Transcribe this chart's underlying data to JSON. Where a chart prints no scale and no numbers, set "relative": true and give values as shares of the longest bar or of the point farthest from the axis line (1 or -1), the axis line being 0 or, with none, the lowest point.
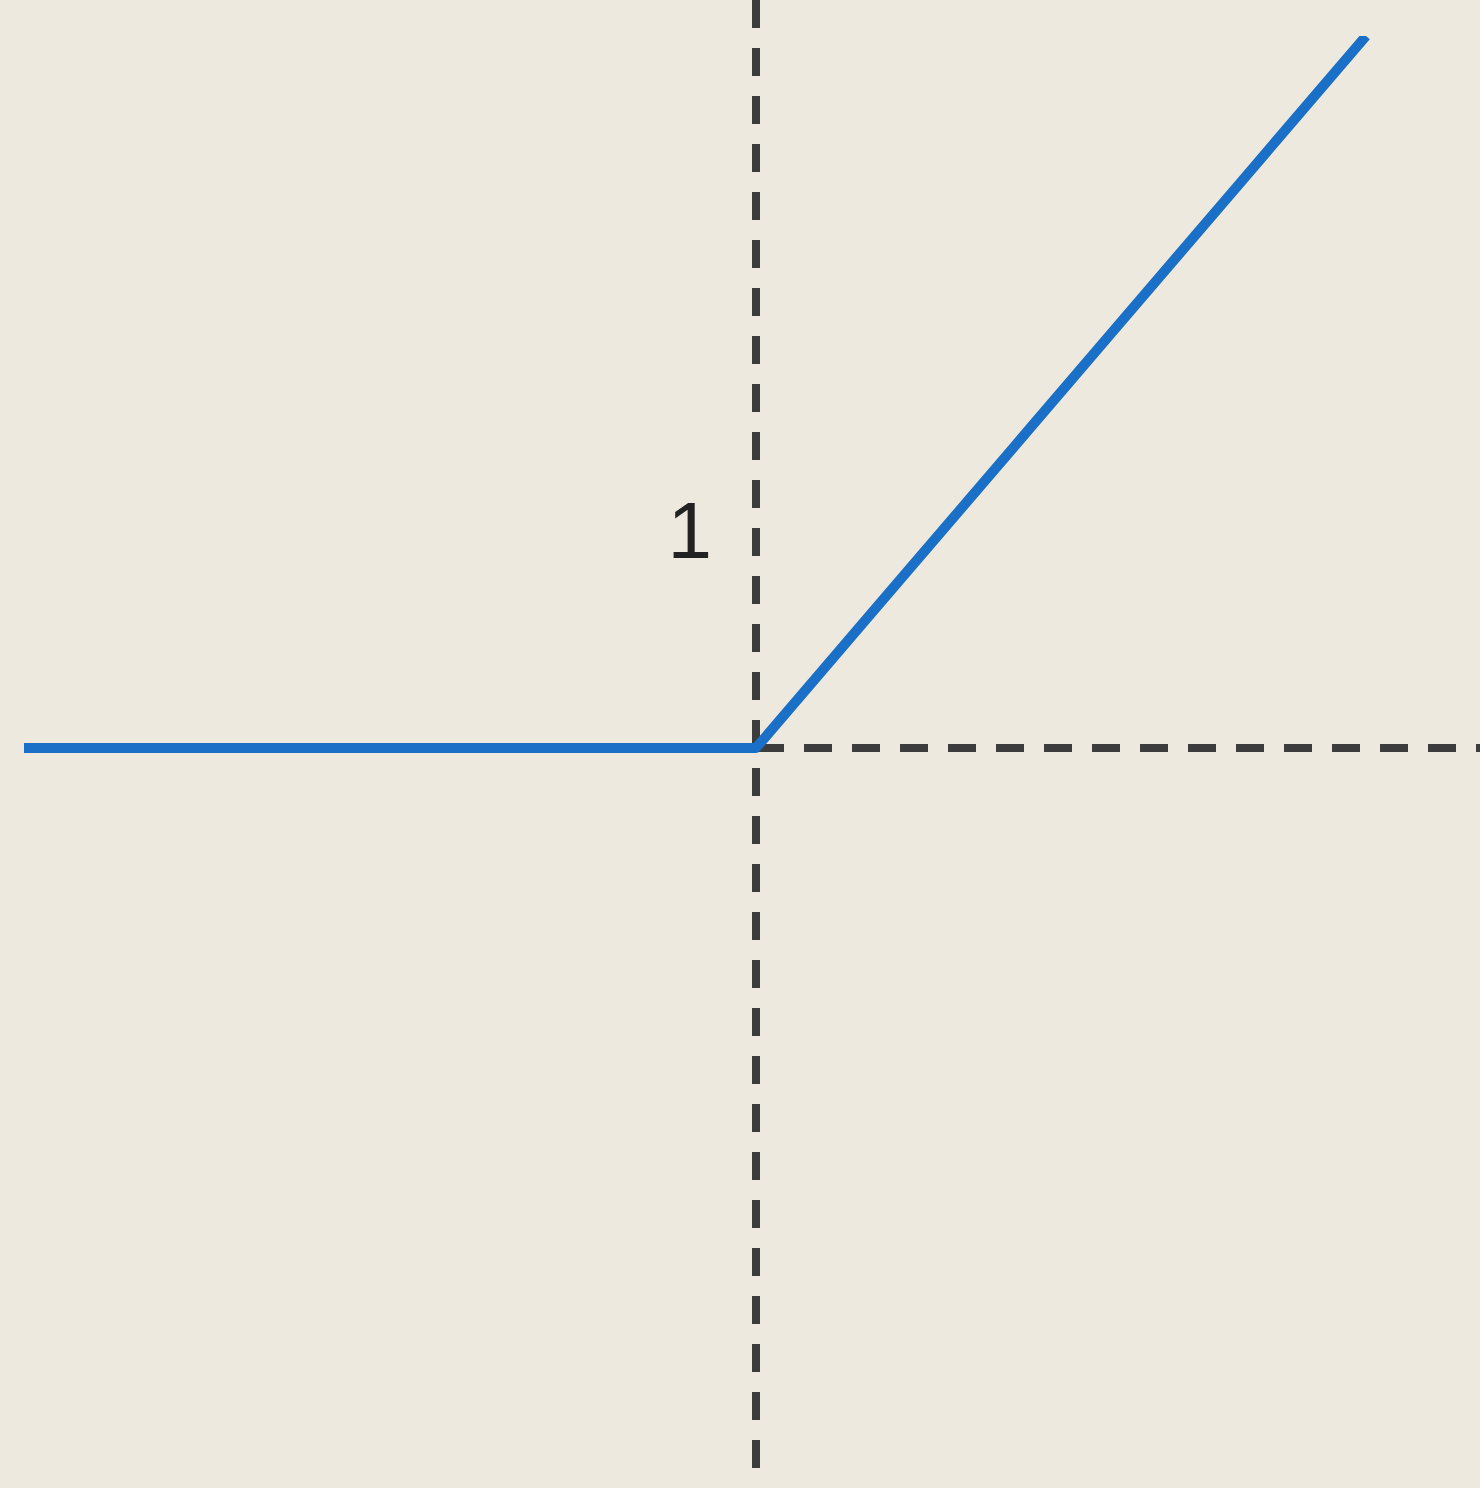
{
  "chart_data": {
    "type": "line",
    "relative": true,
    "categories": [
      null,
      null,
      null,
      null,
      null,
      null,
      null,
      null,
      null,
      null,
      null,
      null
    ],
    "series": [
      {
        "color": "#1a6fc6",
        "values": [
          0,
          0,
          0,
          0,
          0,
          0,
          0,
          0.2,
          0.4,
          0.6,
          0.8,
          1
        ]
      }
    ],
    "annotations": [
      "1"
    ],
    "grid": false,
    "legend": false
  }
}
